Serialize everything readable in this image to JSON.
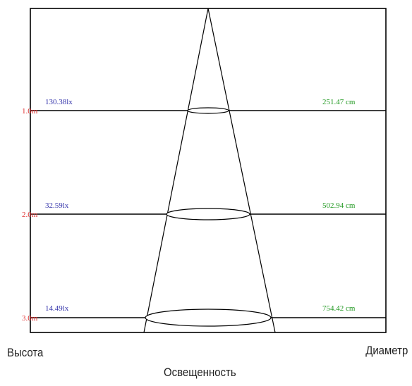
{
  "rows": [
    {
      "height": "1.0m",
      "illuminance": "130.38lx",
      "diameter": "251.47 cm"
    },
    {
      "height": "2.0m",
      "illuminance": "32.59lx",
      "diameter": "502.94 cm"
    },
    {
      "height": "3.0m",
      "illuminance": "14.49lx",
      "diameter": "754.42 cm"
    }
  ],
  "captions": {
    "height": "Высота",
    "diameter": "Диаметр",
    "illuminance": "Освещенность"
  },
  "colors": {
    "height": "#e03030",
    "illuminance": "#3333aa",
    "diameter": "#229922",
    "line": "#000000"
  }
}
